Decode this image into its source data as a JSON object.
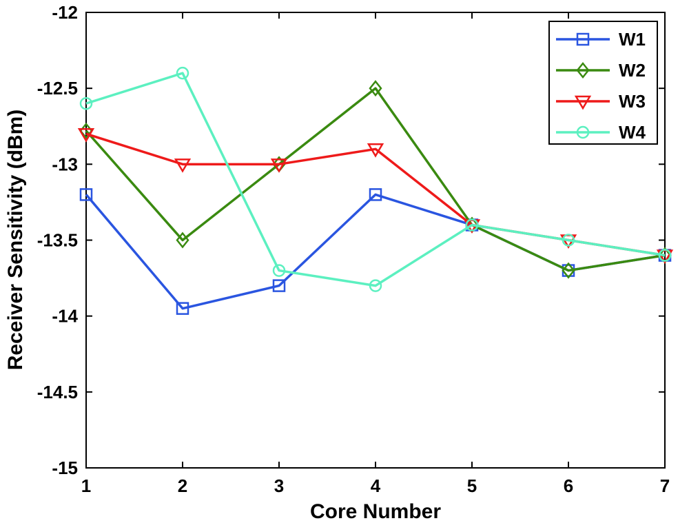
{
  "chart_data": {
    "type": "line",
    "title": "",
    "xlabel": "Core Number",
    "ylabel": "Receiver Sensitivity (dBm)",
    "x": [
      1,
      2,
      3,
      4,
      5,
      6,
      7
    ],
    "xlim": [
      1,
      7
    ],
    "ylim": [
      -15,
      -12
    ],
    "xticks": [
      "1",
      "2",
      "3",
      "4",
      "5",
      "6",
      "7"
    ],
    "yticks": [
      "-12",
      "-12.5",
      "-13",
      "-13.5",
      "-14",
      "-14.5",
      "-15"
    ],
    "ytick_values": [
      -12,
      -12.5,
      -13,
      -13.5,
      -14,
      -14.5,
      -15
    ],
    "grid": false,
    "legend_position": "top-right",
    "series": [
      {
        "name": "W1",
        "marker": "square",
        "color": "#2a55e0",
        "values": [
          -13.2,
          -13.95,
          -13.8,
          -13.2,
          -13.4,
          -13.7,
          -13.6
        ]
      },
      {
        "name": "W2",
        "marker": "diamond",
        "color": "#3a8a10",
        "values": [
          -12.78,
          -13.5,
          -13.0,
          -12.5,
          -13.4,
          -13.7,
          -13.6
        ]
      },
      {
        "name": "W3",
        "marker": "triangle-down",
        "color": "#ee1a1a",
        "values": [
          -12.8,
          -13.0,
          -13.0,
          -12.9,
          -13.4,
          -13.5,
          -13.6
        ]
      },
      {
        "name": "W4",
        "marker": "circle",
        "color": "#5cf0c0",
        "values": [
          -12.6,
          -12.4,
          -13.7,
          -13.8,
          -13.4,
          -13.5,
          -13.6
        ]
      }
    ]
  }
}
